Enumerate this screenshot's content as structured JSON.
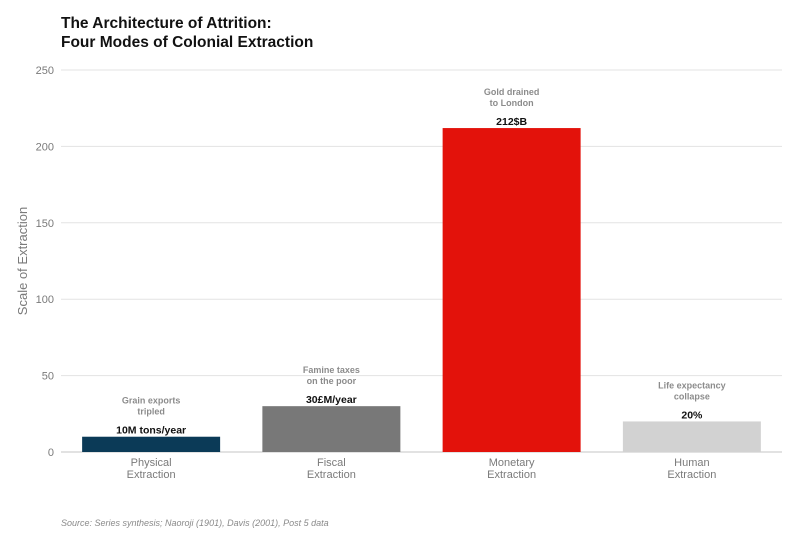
{
  "title": {
    "line1": "The Architecture of Attrition:",
    "line2": "Four Modes of Colonial Extraction"
  },
  "source": "Source: Series synthesis; Naoroji (1901), Davis (2001), Post 5 data",
  "chart_data": {
    "type": "bar",
    "title": "The Architecture of Attrition: Four Modes of Colonial Extraction",
    "xlabel": "",
    "ylabel": "Scale of Extraction",
    "ylim": [
      0,
      250
    ],
    "yticks": [
      0,
      50,
      100,
      150,
      200,
      250
    ],
    "grid": true,
    "categories": [
      [
        "Physical",
        "Extraction"
      ],
      [
        "Fiscal",
        "Extraction"
      ],
      [
        "Monetary",
        "Extraction"
      ],
      [
        "Human",
        "Extraction"
      ]
    ],
    "values": [
      10,
      30,
      212,
      20
    ],
    "colors": [
      "#0b3a57",
      "#787878",
      "#e3120b",
      "#d2d2d2"
    ],
    "value_labels": [
      "10M tons/year",
      "30£M/year",
      "212$B",
      "20%"
    ],
    "annotations": [
      [
        "Grain exports",
        "tripled"
      ],
      [
        "Famine taxes",
        "on the poor"
      ],
      [
        "Gold drained",
        "to London"
      ],
      [
        "Life expectancy",
        "collapse"
      ]
    ]
  }
}
